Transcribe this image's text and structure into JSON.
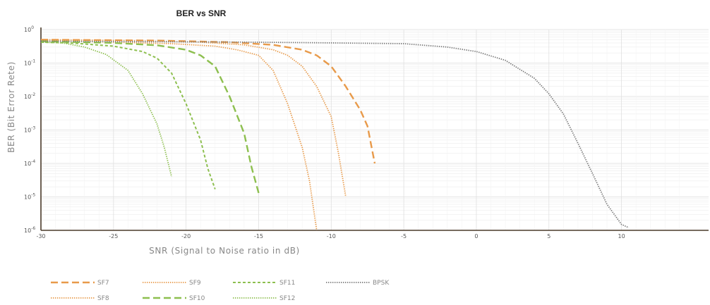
{
  "chart_data": {
    "type": "line",
    "title": "BER vs SNR",
    "xlabel": "SNR (Signal to Noise ratio in dB)",
    "ylabel": "BER (Bit Error Rete)",
    "xlim": [
      -30,
      16
    ],
    "ylim": [
      1e-06,
      1
    ],
    "yscale": "log",
    "xticks": [
      -30,
      -25,
      -20,
      -15,
      -10,
      -5,
      0,
      5,
      10
    ],
    "yticks": [
      {
        "value": 1.0,
        "base": "10",
        "exp": "0"
      },
      {
        "value": 0.1,
        "base": "10",
        "exp": "-1"
      },
      {
        "value": 0.01,
        "base": "10",
        "exp": "-2"
      },
      {
        "value": 0.001,
        "base": "10",
        "exp": "-3"
      },
      {
        "value": 0.0001,
        "base": "10",
        "exp": "-4"
      },
      {
        "value": 1e-05,
        "base": "10",
        "exp": "-5"
      },
      {
        "value": 1e-06,
        "base": "10",
        "exp": "-6"
      }
    ],
    "grid": true,
    "legend_position": "bottom",
    "colors": {
      "orange": "#e89a4a",
      "green": "#8dbf4f",
      "gray": "#7a7a7a"
    },
    "series": [
      {
        "name": "SF7",
        "color": "#e89a4a",
        "dash": "long-dash",
        "x": [
          -30,
          -22,
          -17,
          -14,
          -12,
          -11,
          -10,
          -9,
          -8,
          -7.5,
          -7
        ],
        "y": [
          0.5,
          0.47,
          0.42,
          0.35,
          0.25,
          0.17,
          0.08,
          0.02,
          0.004,
          0.0013,
          0.0001
        ]
      },
      {
        "name": "SF8",
        "color": "#e89a4a",
        "dash": "dotted",
        "x": [
          -30,
          -24,
          -19,
          -16,
          -14,
          -13,
          -12,
          -11,
          -10,
          -9.5,
          -9
        ],
        "y": [
          0.5,
          0.47,
          0.42,
          0.35,
          0.25,
          0.17,
          0.08,
          0.02,
          0.0025,
          0.0002,
          1e-05
        ]
      },
      {
        "name": "SF9",
        "color": "#e89a4a",
        "dash": "dotted",
        "x": [
          -30,
          -26,
          -21,
          -18,
          -16.5,
          -15,
          -14,
          -13,
          -12,
          -11.5,
          -11
        ],
        "y": [
          0.46,
          0.43,
          0.38,
          0.32,
          0.25,
          0.17,
          0.06,
          0.006,
          0.0003,
          3e-05,
          1e-06
        ]
      },
      {
        "name": "SF10",
        "color": "#8dbf4f",
        "dash": "long-dash",
        "x": [
          -30,
          -25,
          -22,
          -20,
          -19,
          -18,
          -17,
          -16,
          -15.5,
          -15
        ],
        "y": [
          0.45,
          0.4,
          0.34,
          0.25,
          0.17,
          0.08,
          0.01,
          0.0008,
          8e-05,
          1.3e-05
        ]
      },
      {
        "name": "SF11",
        "color": "#8dbf4f",
        "dash": "dashed",
        "x": [
          -30,
          -28,
          -25,
          -23,
          -22,
          -21,
          -20,
          -19,
          -18.5,
          -18
        ],
        "y": [
          0.42,
          0.4,
          0.32,
          0.22,
          0.14,
          0.05,
          0.006,
          0.0005,
          7e-05,
          1.7e-05
        ]
      },
      {
        "name": "SF12",
        "color": "#8dbf4f",
        "dash": "dotted",
        "x": [
          -30,
          -28.5,
          -27,
          -25.5,
          -24,
          -23,
          -22,
          -21.5,
          -21
        ],
        "y": [
          0.42,
          0.4,
          0.3,
          0.18,
          0.06,
          0.012,
          0.0015,
          0.0003,
          4e-05
        ]
      },
      {
        "name": "BPSK",
        "color": "#7a7a7a",
        "dash": "dotted",
        "x": [
          -30,
          -15,
          -10,
          -5,
          -2,
          0,
          2,
          4,
          5,
          6,
          7,
          8,
          9,
          10,
          10.5
        ],
        "y": [
          0.45,
          0.42,
          0.4,
          0.38,
          0.3,
          0.22,
          0.12,
          0.035,
          0.012,
          0.003,
          0.0004,
          5e-05,
          6e-06,
          1.5e-06,
          1.2e-06
        ]
      }
    ]
  }
}
